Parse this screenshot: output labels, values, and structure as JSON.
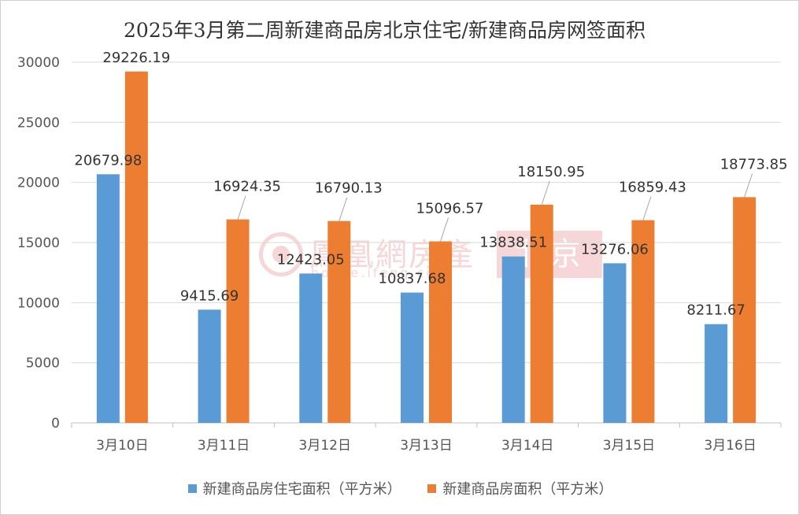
{
  "title": "2025年3月第二周新建商品房北京住宅/新建商品房网签面积",
  "watermark": {
    "name": "鳳凰網房產",
    "url": "house.ifeng.com",
    "city": "北京"
  },
  "colors": {
    "series1": "#5b9bd5",
    "series2": "#ed7d31",
    "grid": "#d9d9d9",
    "axis": "#bfbfbf",
    "leader": "#a6a6a6"
  },
  "chart_data": {
    "type": "bar",
    "title": "2025年3月第二周新建商品房北京住宅/新建商品房网签面积",
    "categories": [
      "3月10日",
      "3月11日",
      "3月12日",
      "3月13日",
      "3月14日",
      "3月15日",
      "3月16日"
    ],
    "series": [
      {
        "name": "新建商品房住宅面积（平方米）",
        "values": [
          20679.98,
          9415.69,
          12423.05,
          10837.68,
          13838.51,
          13276.06,
          8211.67
        ],
        "labels": [
          "20679.98",
          "9415.69",
          "12423.05",
          "10837.68",
          "13838.51",
          "13276.06",
          "8211.67"
        ]
      },
      {
        "name": "新建商品房面积（平方米）",
        "values": [
          29226.19,
          16924.35,
          16790.13,
          15096.57,
          18150.95,
          16859.43,
          18773.85
        ],
        "labels": [
          "29226.19",
          "16924.35",
          "16790.13",
          "15096.57",
          "18150.95",
          "16859.43",
          "18773.85"
        ]
      }
    ],
    "ylim": [
      0,
      30000
    ],
    "yticks": [
      0,
      5000,
      10000,
      15000,
      20000,
      25000,
      30000
    ],
    "ytick_labels": [
      "0",
      "5000",
      "10000",
      "15000",
      "20000",
      "25000",
      "30000"
    ],
    "grid": true,
    "legend_position": "bottom"
  }
}
